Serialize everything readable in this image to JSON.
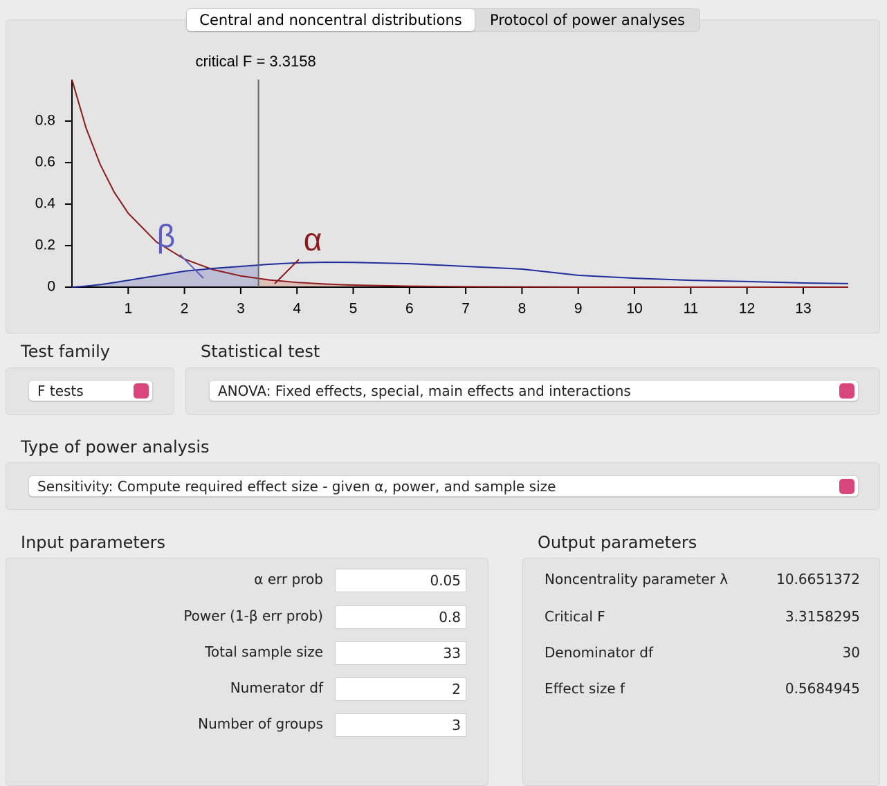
{
  "tabs": [
    "Central and noncentral distributions",
    "Protocol of power analyses"
  ],
  "chart_data": {
    "type": "line",
    "annotations": {
      "critical_label": "critical F = 3.3158",
      "critical_value": 3.3158,
      "beta": "β",
      "alpha": "α"
    },
    "x": [
      0,
      0.25,
      0.5,
      0.75,
      1,
      1.5,
      2,
      2.5,
      3,
      3.5,
      4,
      4.5,
      5,
      6,
      7,
      8,
      9,
      10,
      11,
      12,
      13,
      13.8
    ],
    "series": [
      {
        "name": "central",
        "color": "#8b1a1a",
        "values": [
          1,
          0.767,
          0.592,
          0.458,
          0.356,
          0.218,
          0.135,
          0.085,
          0.054,
          0.035,
          0.0227,
          0.015,
          0.01,
          0.0046,
          0.0022,
          0.0011,
          0.0005,
          0.0003,
          0.0002,
          0.0001,
          0.0001,
          0
        ]
      },
      {
        "name": "noncentral",
        "color": "#1f2d9b",
        "values": [
          0,
          0.005,
          0.012,
          0.022,
          0.033,
          0.055,
          0.077,
          0.09,
          0.1,
          0.11,
          0.117,
          0.12,
          0.119,
          0.113,
          0.1,
          0.087,
          0.057,
          0.043,
          0.033,
          0.027,
          0.02,
          0.017
        ]
      }
    ],
    "xlim": [
      0,
      13.8
    ],
    "ylim": [
      0,
      1
    ],
    "xticks": [
      1,
      2,
      3,
      4,
      5,
      6,
      7,
      8,
      9,
      10,
      11,
      12,
      13
    ],
    "yticks": [
      0,
      0.2,
      0.4,
      0.6,
      0.8
    ]
  },
  "test_family": {
    "label": "Test family",
    "value": "F tests"
  },
  "statistical_test": {
    "label": "Statistical test",
    "value": "ANOVA: Fixed effects, special, main effects and interactions"
  },
  "power_analysis": {
    "label": "Type of power analysis",
    "value": "Sensitivity: Compute required effect size - given α, power, and sample size"
  },
  "input": {
    "title": "Input parameters",
    "rows": [
      [
        "α err prob",
        "0.05"
      ],
      [
        "Power (1-β err prob)",
        "0.8"
      ],
      [
        "Total sample size",
        "33"
      ],
      [
        "Numerator df",
        "2"
      ],
      [
        "Number of groups",
        "3"
      ]
    ]
  },
  "output": {
    "title": "Output parameters",
    "rows": [
      [
        "Noncentrality parameter λ",
        "10.6651372"
      ],
      [
        "Critical F",
        "3.3158295"
      ],
      [
        "Denominator df",
        "30"
      ],
      [
        "Effect size f",
        "0.5684945"
      ]
    ]
  }
}
